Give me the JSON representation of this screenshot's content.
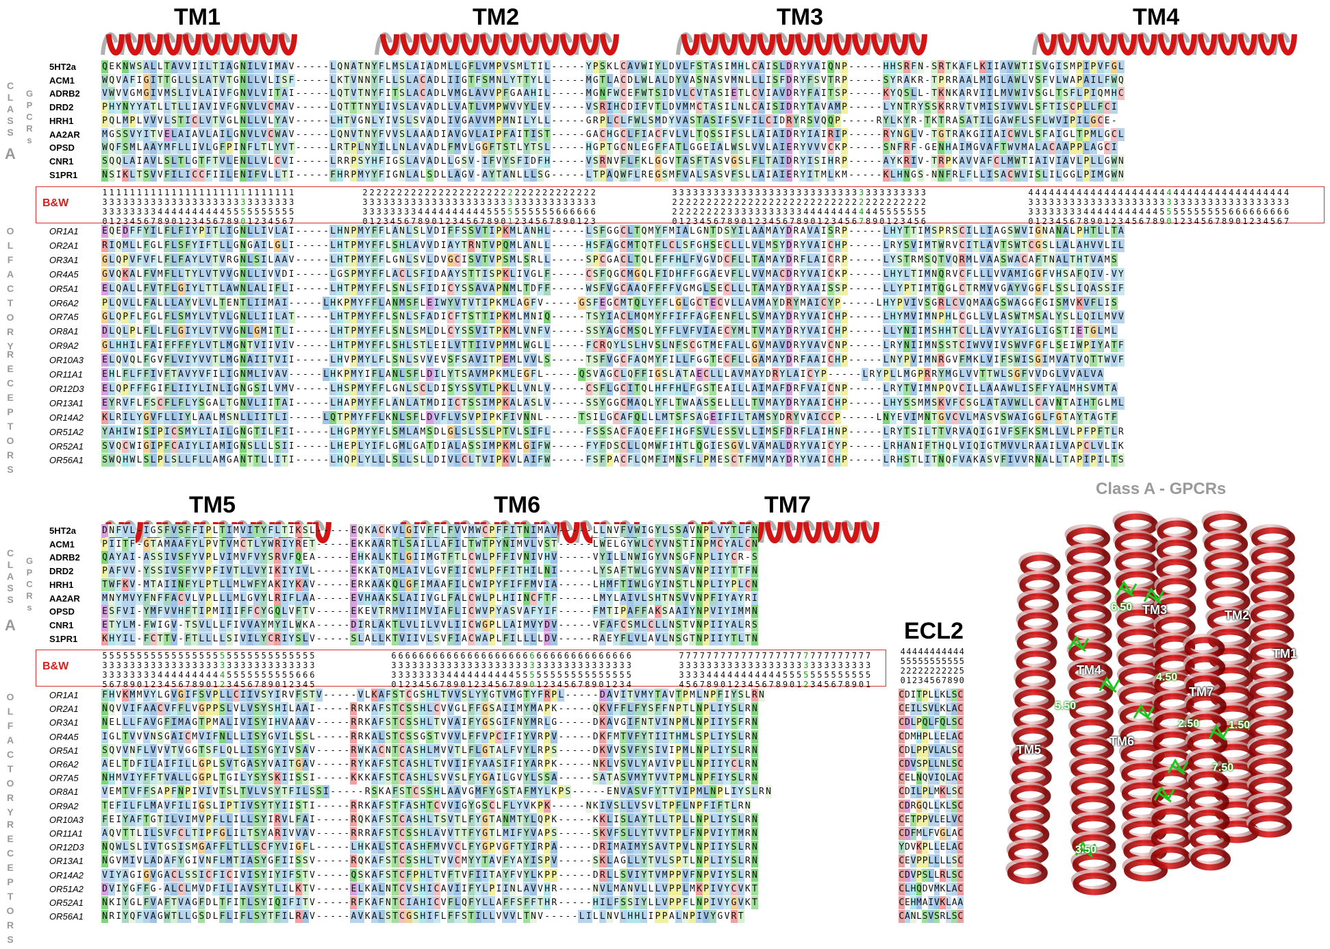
{
  "top_titles": [
    "TM1",
    "TM2",
    "TM3",
    "TM4"
  ],
  "bottom_titles": [
    "TM5",
    "TM6",
    "TM7"
  ],
  "side_labels": {
    "class": "CLASS",
    "a": "A",
    "gpcrs": "GPCRs",
    "olfactory": "OLFACTORY",
    "receptors": "RECEPTORS"
  },
  "bw_label": "B&W",
  "ecl2_title": "ECL2",
  "structure_title": "Class A - GPCRs",
  "structure_labels": [
    "TM1",
    "TM2",
    "TM3",
    "TM4",
    "TM5",
    "TM6",
    "TM7"
  ],
  "structure_numbers": [
    "6.50",
    "4.50",
    "2.50",
    "1.50",
    "5.50",
    "7.50",
    "3.50"
  ],
  "gpcr_names": [
    "5HT2a",
    "ACM1",
    "ADRB2",
    "DRD2",
    "HRH1",
    "AA2AR",
    "OPSD",
    "CNR1",
    "S1PR1"
  ],
  "or_names": [
    "OR1A1",
    "OR2A1",
    "OR3A1",
    "OR4A5",
    "OR5A1",
    "OR6A2",
    "OR7A5",
    "OR8A1",
    "OR9A2",
    "OR10A3",
    "OR11A1",
    "OR12D3",
    "OR13A1",
    "OR14A2",
    "OR51A2",
    "OR52A1",
    "OR56A1"
  ],
  "top_gpcr_seqs": [
    "QEKNWSALLTAVVIILTIAGNILVIMAV-----LQNATNYFLMSLAIADMLLGFLVMPVSMLTIL-----YPSKLCAVWIYLDVLFSTASIMHLCAISLDRYVAIQNP-----HHSRFN-SRTKAFLKIIAVWTISVGISMPIPVFGL",
    "WQVAFIGITTGLLSLATVTGNLLVLISF-----LKTVNNYFLLSLACADLIIGTFSMNLYTTYLL-----MGTLACDLWLALDYVASNASVMNLLLISFDRYFSVTRP-----SYRAKR-TPRRAALMIGLAWLVSFVLWAPAILFWQ",
    "VWVVGMGIVMSLIVLAIVFGNVLVITAI-----LQTVTNYFITSLACADLVMGLAVVPFGAAHIL-----MGNFWCEFWTSIDVLCVTASIETLCVIAVDRYFAITSP-----KYQSLL-TKNKARVIILMVWIVSGLTSFLPIQMHC",
    "PHYNYYATLLTLLIAVIVFGNVLVCMAV-----LQTTTNYLIVSLAVADLLVATLVMPWVVYLEV-----VSRIHCDIFVTLDVMMCTASILNLCAISIDRYTAVAMP-----LYNTRYSSKRRVTVMISIVWVLSFTISCPLLFCI",
    "PQLMPLVVVLSTICLVTVGLNLLVLYAV-----LHTVGNLYIVSLSVADLIVGAVVMPMNILYLL-----GRPLCLFWLSMDYVASTASIFSVFILCIDRYRSVQQP-----RYLKYR-TKTRASATILGAWFLSFLWVIPILGCE-",
    "MGSSVYITVELAIAVLAILGNVLVCWAV-----LQNVTNYFVVSLAAADIAVGVLAIPFAITIST-----GACHGCLFIACFVLVLTQSSIFSLLAIAIDRYIAIRIP-----RYNGLV-TGTRAKGIIAICWVLSFAIGLTPMLGCL",
    "WQFSMLAAYMFLLIVLGFPINFLTLYVT-----LRTPLNYILLNLAVADLFMVLGGFTSTLYTSL-----HGPTGCNLEGFFATLGGEIALWSLVVLAIERYVVVCKP-----SNFRF-GENHAIMGVAFTWVMALACAAPPLAGCI",
    "SQQLAIAVLSLTLGTFTVLENLLVLCVI-----LRRPSYHFIGSLAVADLLGSV-IFVYSFIDFH-----VSRNVFLFKLGGVTASFTASVGSLFLTAIDRYISIHRP-----AYKRIV-TRPKAVVAFCLMWTIAIVIAVLPLLGWN",
    "NSIKLTSVVFILICCFIILENIFVLLTI-----FHRPMYYFIGNLALSDLLAGV-AYTANLLLSG-----LTPAQWFLREGSMFVALSASVFSLLAIAIERYITMLKM-----KLHNGS-NNFRLFLLISACWVISLILGGLPIMGWN"
  ],
  "top_or_seqs": [
    "EQEDFFYILFLFIYPITLIGNLLIVLAI-----LHNPMYFFLANLSLVDIFFSSVTIPKMLANHL-----LSFGGCLTQMYFMIALGNTDSYILAAMAYDRAVAISRP-----LHYTTIMSPRSCILLIAGSWVIGNANALPHTLLTA",
    "RIQMLLFGLFLSFYIFTLLGNGAILGLI-----LHTPMYFFLSHLAVVDIAYTRNTVPQMLANLL-----HSFAGCMTQTFLCLSFGHSECLLLVLMSYDRYVAICHP-----LRYSVIMTWRVCITLAVTSWTCGSLLALAHVVLIL",
    "GLQPVFVFLFLFAYLVTVRGNLSILAAV-----LHTPMYFFLGNLSVLDVGCISVTVPSMLSRLL-----SPCGACLTQLFFFHLFVGVDCFLLTAMAYDRFLAICRP-----LYSTRMSQTVQRMLVAASWACAFTNALTHTVAMS",
    "GVQKALFVMFLLTYLVTVVGNLLIVVDI-----LGSPMYFFLACLSFIDAAYSTTISPKLIVGLF-----CSFQGCMGQLFIDHFFGGAEVFLLVVMACDRYVAICKP-----LHYLTIMNQRVCFLLLVVAMIGGFVHSAFQIV-VY",
    "ELQALLFVTFLGIYLTTLAWNLALIFLI-----LHTPMYFFLSNLSFIDICYSSAVAPNMLTDFF-----WSFVGCAAQFFFFVGMGLSECLLLTAMAYDRYAAISSP-----LLYPTIMTQGLCTRMVVGAYVGGFLSSLIQASSIF",
    "PLQVLLFALLLAYVLVLTENTLIIMAI-----LHKPMYFFLANMSFLEIWYVTVTIPKMLAGFV-----GSFEGCMTQLYFFLGLGCTECVLLAVMAYDRYMAICYP-----LHYPVIVSGRLCVQMAAGSWAGGFGISMVKVFLIS",
    "GLQPFLFGLFLSMYLVTVLGNLLIILAT-----LHTPMYFFLSNLSFADICFTSTTIPKMLMNIQ-----TSYIACLMQMYFFIFFAGFENFLLSVMAYDRYVAICHP-----LHYMVIMNPHLCGLLVLASWTMSALYSLLQILMVV",
    "DLQLPLFLLFLGIYLVTVVGNLGMITLI-----LHTPMYFFLSNLSMLDLCYSSVITPKMLVNFV-----SSYAGCMSQLYFFLVFVIAECYMLTVMAYDRYVAICHP-----LLYNIIMSHHTCLLLAVVYAIGLIGSTIETGLML",
    "GLHHILFAIFFFFYLVTLMGNTVIIVIV-----LHTPMYFFLSHLSTLEILVTTIIVPMMLWGLL-----FCRQYLSLHVSLNFSCGTMEFALLGVMAVDRYVAVCNP-----LRYNIIMNSSTCIWVVIVSWVFGFLSEIWPIYATF",
    "ELQVQLFGVFLVIYVVTLMGNAIITVII-----LHVPMYLFLSNLSVVEVSFSAVITPEMLVVLS-----TSFVGCFAQMYFILLFGGTECFLLGAMAYDRFAAICHP-----LNYPVIMNRGVFMKLVIFSWISGIMVATVQTTWVF",
    "EHLFLFFIVFTAVYVFILIGNMLIVAV-----LHKPMYIFLANLSFLDILYTSAVMPKMLEGFL-----QSVAGCLQFFIGSLATAECLLLAVMAYDRYLAICYP-----LRYPLLMGPRRYMGLVVTTWLSGFVVDGLVVALVA",
    "ELQPFFFGIFLIIYLINLIGNGSILVMV-----LHSPMYFFLGNLSCLDISYSSVTLPKLLVNLV-----CSFLGCITQLHFFHLFGSTEAILLAIMAFDRFVAICNP-----LRYTVIMNPQVCILLAAAWLISFFYALMHSVMTA",
    "EYRVFLFSCFLFLYSGALTGNVLIITAI-----LHAPMYFFLANLATMDIICTSSIMPKALASLV-----SSYGGCMAQLYFLTWAASSELLLLTVMAYDRYAAICHP-----LHYSSMMSKVFCSGLATAVWLLCAVNTAIHTGLML",
    "KLRILYGVFLLIYLAALMSNLLIITLI-----LQTPMYFFLKNLSFLDVFLVSVPIPKFIVNNL-----TSILGCAFQLLLMTSFSAGEIFILTAMSYDRYVAICCP-----LNYEVIMNTGVCVLMASVSWAIGGLFGTAYTAGTF",
    "YAHIWISIPICSMYLIAILGNGTILFII-----LHGPMYYFLSMLAMSDLGLSLSSLPTVLSIFL-----FSSSACFAQEFFIHGFSVLESSVLLIMSFDRFLAIHNP-----LRYTSILTTVRVAQIGIVFSFKSMLLVLPFPFTLR",
    "SVQCWIGIPFCAIYLIAMIGNSLLLSII-----LHEPLYIFLGMLGATDIALASSIMPKMLGIFW-----FYFDSCLLQMWFIHTLQGIESGVLVAMALDRYVAICYP-----LRHANIFTHQLVIQIGTMVVLRAAILVAPCLVLIK",
    "SWQHWLSLPLSLLFLLAMGANTTLLITI-----LHQPLYLLLSLLSLLDIVLCLTVIPKVLAIFW-----FSFPACFLQMFIMNSFLPMESCTFMVMAYDRYVAICHP-----LRHSTLITNQFVAKASVFIVVRNALLTAPIPILTS"
  ],
  "bot_gpcr_seqs": [
    "DNFVL-IGSFVSFFIPLTIMVITYFLTIKSL-----EQKACKVLGIVFFLFVVMWCPFFITNIMAV-----LLNVFVWIGYLSSAVNPLVYTLFN",
    "PIITF-GTAMAAFYLPVTVMCTLYWRIYRET-----EKKAARTLSAILLAFILTWTPYNIMVLVST-----LWELGYWLCYVNSTINPMCYALCN",
    "QAYAI-ASSIVSFYVPLVIMVFVYSRVFQEA-----EHKALKTLGIIMGTFTLCWLPFFIVNIVHV-----VYILLNWIGYVNSGFNPLIYCR-S",
    "PAFVV-YSSIVSFYVPFIVTLLVYIKIYIVL-----EKKATQMLAIVLGVFIICWLPFFITHILNI-----LYSAFTWLGYVNSAVNPIIYTTFN",
    "TWFKV-MTAIINFYLPTLLMLWFYAKIYKAV-----ERKAAKQLGFIMAAFILCWIPYFIFFMVIA-----LHMFTIWLGYINSTLNPLIYPLCN",
    "MNYMVYFNFFACVLVPLLLMLGVYLRIFLAA-----EVHAAKSLAIIVGLFALCWLPLHIINCFTF-----LMYLAIVLSHTNSVVNPFIYAYRI",
    "ESFVI-YMFVVHFTIPMIIIFFCYGQLVFTV-----EKEVTRMVIIMVIAFLICWVPYASVAFYIF-----FMTIPAFFAKSAAIYNPVIYIMMN",
    "ETYLM-FWIGV-TSVLLLFIVVAYMYILWKA-----DIRLAKTLVLILVVLIICWGPLLAIMVYDV-----VFAFCSMLCLLNSTVNPIIYALRS",
    "KHYIL-FCTTV-FTLLLLSIVILYCRIYSLV-----SLALLKTVIIVLSVFIACWAPLFILLLLDV-----RAEYFLVLAVLNSGTNPIIYTLTN"
  ],
  "bot_or_seqs": [
    "FHVKMMVYLGVGIFSVPLLCIIVSYIRVFSTV-----VLKAFSTCGSHLTVVSLYYGTVMGTYFRPL-----DAVITVMYTAVTPMLNPFIYSLRN",
    "NQVVIFAACVFFLVGPPSLVLVSYSHILAAI-----RRKAFSTCSSHLCVVGLFFGSAIIMYMAPK-----QKVFFLFYSFFNPTLNPLIYSLRN",
    "NELLLFAVGFIMAGTPMALIVISYIHVAAAV-----RRKAFSTCSSHLTVVAIFYGSGIFNYMRLG-----DKAVGIFNTVINPMLNPIIYSFRN",
    "IGLTVVVNSGAICMVIFNLLLISYGVILSSL-----RRKALSTCSSGSTVVVLFFVPCIFIYVRPV-----DKFMTVFYTIITHMLSPLIYSLRN",
    "SQVVNFLVVVTVGGTSFLQLLISYGYIVSAV-----RWKACNTCASHLMVVTLFLGTALFVYLRPS-----DKVVSVFYSIVIPMLNPLIYSLRN",
    "AELTDFILAIFILLGPLSVTGASYVAITGAV-----RYKAFSTCASHLTVVIIFYAASIFIYARPK-----NKLVSVLYAVIVPLLNPIIYCLRN",
    "NHMVIYFFTVALLGGPLTGILYSYSKIISSI-----KKKAFSTCASHLSVVSLFYGAILGVYLSSA-----SATASVMYTVVTPMLNPFIYSLRN",
    "VEMTVFFSAPFNPIVIVTSLTVLVSYTFILSSI-----RSKAFSTCSSHLAAVGMFYGSTAFMYLKPS-----ENVASVFYTTVIPMLNPLIYSLRN",
    "TEFILFLMAVFILIGSLIPTIVSYTYIISTI-----RRKAFSTFASHTCVVIGYGSCLFLYVKPK-----NKIVSLLVSVLTPFLNPFIFTLRN",
    "FEIYAFTGTILVIMVPFLLILLSYIRVLFAI-----RQKAFSTCASHLTSVTLFYGTANMTYLQPK-----KKLISLAYTLLTPLLNPLIYSLRN",
    "AQVTTLILSVFCLTIPFGLILTSYARIVVAV-----RRRAFSTCSSHLAVVTTFYGTLMIFYVAPS-----SKVFSLLYTVVTPLFNPVIYTMRN",
    "NQWLSLIVTGSISMGAFFLTLLSCFYVIGFL-----LHKALSTCASHFMVVCLFYGPVGFTYIRPA-----DRIMAIMYSAVTPVLNPIIYSLRN",
    "NGVMIVLADAFYGIVNFLMTIASYGFIISSV-----RQKAFSTCSSHLTVVCMYYTAVFYAYISPV-----SKLAGLLYTVLSPTLNPLIYSLRN",
    "VIYAGIGVGACLSSICFICIVISYIYIFSTV-----QSKAFSTCFPHLTVFTVFIITAYFVYLKPP-----DRLLSVIYTVMPPVFNPVIYSLRN",
    "DVIYGFFG-ALCLMVDFILIAVSYTLILKTV-----ELKALNTCVSHICAVIIFYLPIINLAVVHR-----NVLMANVLLLVPPLMKPIVYCVKT",
    "NKIYGLFVAFTVAGFDLTFITLSYIQIFITV-----RFKAFNTCIAHICVFLQFYLLAFFSFFTHR-----HILFSSIYLLVPPFLNPIVYGVKT",
    "NRIYQFVAGWTLLGSDLFLIFLSYTFILRAV-----AVKALSTCGSHIFLFFSTILLVVVLTNV-----LILLNVLHHLIPPALNPIVYGVRT"
  ],
  "ecl2_rows": [
    "CDITPLLKLSC",
    "CEILSVLKLAC",
    "CDLPQLFQLSC",
    "CDMHPLLELAC",
    "CDLPPVLALSC",
    "CDVSPLLNLSC",
    "CELNQVIQLAC",
    "CDILPLMKLSC",
    "CDRGQLLKLSC",
    "CETPPVLELVC",
    "CDFMLFVGLAC",
    "YDVKPLLELAC",
    "CEVPPLLLLSC",
    "CDVPSLLRLSC",
    "CLHQDVMKLAC",
    "CEHMAIVKLAA",
    "CANLSVSRLSC"
  ],
  "ecl2_numbers": [
    "44444444444",
    "55555555555",
    "22222222225",
    "01234567890"
  ],
  "bw_top": [
    [
      "1111111111111111111111111111",
      "3333333333333333333333333333",
      "3333333344444444445555555555",
      "0123456789012345678901234567"
    ],
    [
      "2222222222222222222222222222222222",
      "3333333333333333333333333333333333",
      "3333333344444444445555555555666666",
      "0123456789012345678901234567890123"
    ],
    [
      "3333333333333333333333333333333333333",
      "2222222222222222222222222222222222222",
      "2222222233333333333444444444445555555",
      "0123456789012345678901234567890123456"
    ],
    [
      "44444444444444444444444444444444444444",
      "33333333333333333333333333333333333333",
      "33333333444444444445555555555666666666",
      "01234567890123456789012345678901234567"
    ]
  ],
  "bw_bot": [
    [
      "5555555555555555555555555555555",
      "3333333333333333333333333333333",
      "3333333344444444445555555555666",
      "5678901234567890123456789012345"
    ],
    [
      "66666666666666666666666666666666666",
      "33333333333333333333333333333333333",
      "33333333444444444455555555555555555",
      "01234567890123456789012345678901234"
    ],
    [
      "7777777777777777777777777777",
      "3333333333333333333333333333",
      "3333444444444445555555555555",
      "4567890123456789012345678901"
    ]
  ]
}
